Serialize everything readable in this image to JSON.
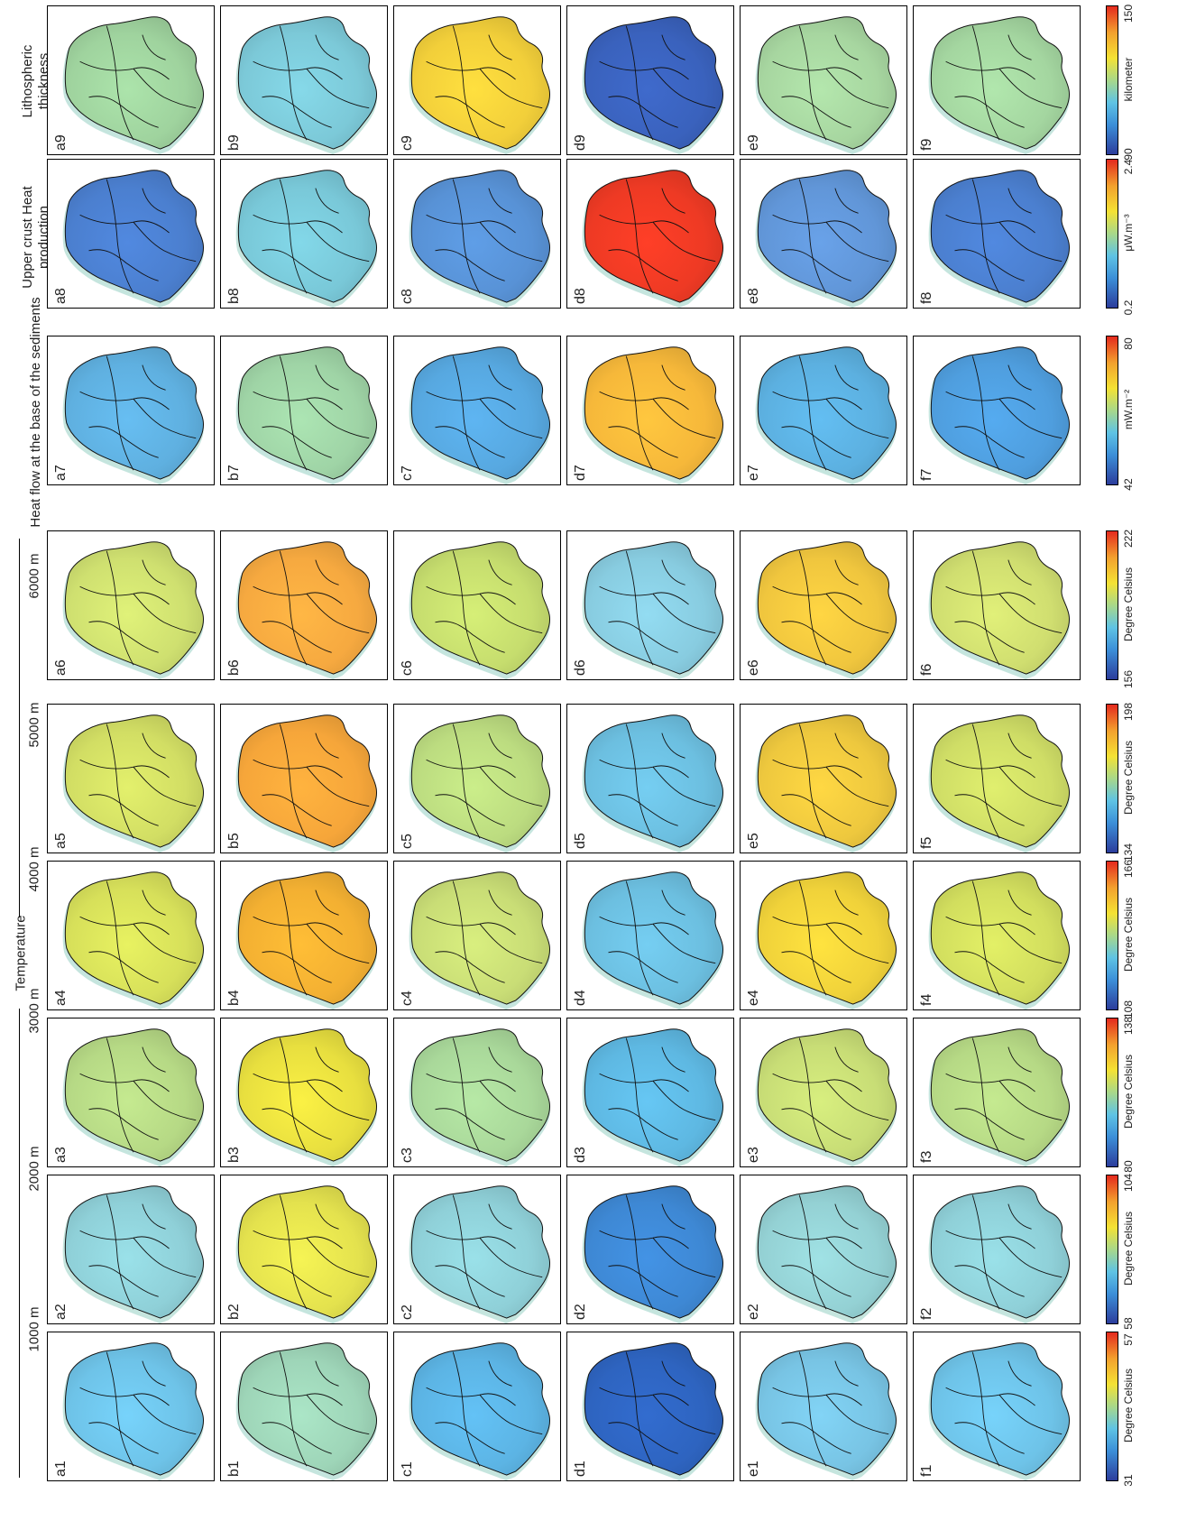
{
  "header": {
    "temperature": "Temperature",
    "depths": [
      "1000 m",
      "2000 m",
      "3000 m",
      "4000 m",
      "5000 m",
      "6000 m"
    ],
    "heatflow": "Heat flow at the base of the sediments",
    "heatprod": "Upper crust Heat production",
    "litho": "Lithospheric thickness"
  },
  "rows": [
    "a",
    "b",
    "c",
    "d",
    "e",
    "f"
  ],
  "panel_labels": {
    "a": [
      "a1",
      "a2",
      "a3",
      "a4",
      "a5",
      "a6",
      "a7",
      "a8",
      "a9"
    ],
    "b": [
      "b1",
      "b2",
      "b3",
      "b4",
      "b5",
      "b6",
      "b7",
      "b8",
      "b9"
    ],
    "c": [
      "c1",
      "c2",
      "c3",
      "c4",
      "c5",
      "c6",
      "c7",
      "c8",
      "c9"
    ],
    "d": [
      "d1",
      "d2",
      "d3",
      "d4",
      "d5",
      "d6",
      "d7",
      "d8",
      "d9"
    ],
    "e": [
      "e1",
      "e2",
      "e3",
      "e4",
      "e5",
      "e6",
      "e7",
      "e8",
      "e9"
    ],
    "f": [
      "f1",
      "f2",
      "f3",
      "f4",
      "f5",
      "f6",
      "f7",
      "f8",
      "f9"
    ]
  },
  "colorbars": [
    {
      "min": "31",
      "max": "57",
      "unit": "Degree Celsius"
    },
    {
      "min": "58",
      "max": "104",
      "unit": "Degree Celsius"
    },
    {
      "min": "80",
      "max": "138",
      "unit": "Degree Celsius"
    },
    {
      "min": "108",
      "max": "166",
      "unit": "Degree Celsius"
    },
    {
      "min": "134",
      "max": "198",
      "unit": "Degree Celsius"
    },
    {
      "min": "156",
      "max": "222",
      "unit": "Degree Celsius"
    },
    {
      "min": "42",
      "max": "80",
      "unit": "mW.m⁻²"
    },
    {
      "min": "0.2",
      "max": "2.4",
      "unit": "μW.m⁻³"
    },
    {
      "min": "90",
      "max": "150",
      "unit": "kilometer"
    }
  ],
  "colors": {
    "a": [
      "#6ec3e8",
      "#8fd0d8",
      "#b6d985",
      "#d7e05a",
      "#d2de64",
      "#cfe070",
      "#5fb0e0",
      "#4b7fcf",
      "#9fd39e"
    ],
    "b": [
      "#9ed5b8",
      "#e4e24e",
      "#e8df3f",
      "#f3b032",
      "#f6a63a",
      "#f6a940",
      "#9fd4a6",
      "#79c8d8",
      "#7cc9d8"
    ],
    "c": [
      "#5cb4e4",
      "#8fd0d8",
      "#a9d89a",
      "#c9dd76",
      "#bcdc80",
      "#c6dd6e",
      "#57a8e0",
      "#5892d6",
      "#f2cf3a"
    ],
    "d": [
      "#2e64c0",
      "#3e88d4",
      "#5eb8e2",
      "#6cbfe0",
      "#6cbfe0",
      "#88cce0",
      "#f6b83a",
      "#ee3a24",
      "#3a62bd"
    ],
    "e": [
      "#78c4e4",
      "#94d1d4",
      "#c8dd76",
      "#f0d23a",
      "#eec83e",
      "#f0c63e",
      "#5cb0e0",
      "#6196d8",
      "#a7d6a0"
    ],
    "f": [
      "#6ec3e8",
      "#8fd0d8",
      "#b6d985",
      "#d2de5e",
      "#cfdd66",
      "#d0de70",
      "#4f9ede",
      "#4b7fcf",
      "#a4d6a0"
    ]
  }
}
